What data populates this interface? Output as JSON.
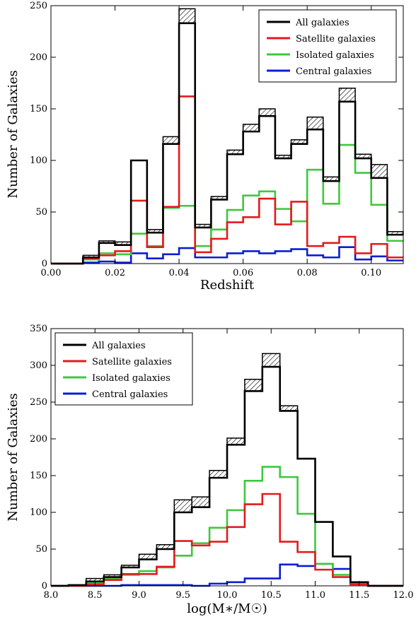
{
  "chart_data": [
    {
      "type": "histogram",
      "xlabel": "Redshift",
      "ylabel": "Number of Galaxies",
      "xlim": [
        0.0,
        0.11
      ],
      "ylim": [
        0,
        250
      ],
      "xticks": [
        "0.00",
        "0.02",
        "0.04",
        "0.06",
        "0.08",
        "0.10"
      ],
      "yticks": [
        "0",
        "50",
        "100",
        "150",
        "200",
        "250"
      ],
      "legend_position": "top-right",
      "bin_edges": [
        0.0,
        0.005,
        0.01,
        0.015,
        0.02,
        0.025,
        0.03,
        0.035,
        0.04,
        0.045,
        0.05,
        0.055,
        0.06,
        0.065,
        0.07,
        0.075,
        0.08,
        0.085,
        0.09,
        0.095,
        0.1,
        0.105,
        0.11
      ],
      "series": [
        {
          "name": "All galaxies",
          "color": "#000000",
          "values": [
            0,
            0,
            6,
            20,
            18,
            100,
            30,
            116,
            233,
            35,
            62,
            106,
            128,
            143,
            102,
            116,
            130,
            80,
            157,
            102,
            83,
            28
          ],
          "upper": [
            0,
            0,
            8,
            22,
            21,
            100,
            33,
            123,
            247,
            38,
            65,
            110,
            135,
            150,
            105,
            120,
            142,
            84,
            170,
            106,
            96,
            31
          ]
        },
        {
          "name": "Satellite galaxies",
          "color": "#e41a1c",
          "values": [
            0,
            0,
            5,
            8,
            12,
            61,
            16,
            55,
            162,
            11,
            24,
            40,
            45,
            63,
            38,
            60,
            17,
            20,
            26,
            10,
            19,
            6
          ]
        },
        {
          "name": "Isolated galaxies",
          "color": "#3ec83e",
          "values": [
            0,
            0,
            4,
            10,
            9,
            29,
            17,
            54,
            56,
            17,
            33,
            52,
            66,
            70,
            53,
            41,
            91,
            58,
            115,
            88,
            57,
            22
          ]
        },
        {
          "name": "Central galaxies",
          "color": "#0a1ed0",
          "values": [
            0,
            0,
            1,
            2,
            1,
            10,
            5,
            9,
            15,
            6,
            6,
            10,
            12,
            10,
            12,
            14,
            8,
            6,
            16,
            4,
            7,
            3
          ]
        }
      ]
    },
    {
      "type": "histogram",
      "xlabel": "log(M∗/M☉)",
      "ylabel": "Number of Galaxies",
      "xlim": [
        8.0,
        12.0
      ],
      "ylim": [
        0,
        350
      ],
      "xticks": [
        "8.0",
        "8.5",
        "9.0",
        "9.5",
        "10.0",
        "10.5",
        "11.0",
        "11.5",
        "12.0"
      ],
      "yticks": [
        "0",
        "50",
        "100",
        "150",
        "200",
        "250",
        "300",
        "350"
      ],
      "legend_position": "top-left",
      "bin_edges": [
        8.0,
        8.2,
        8.4,
        8.6,
        8.8,
        9.0,
        9.2,
        9.4,
        9.6,
        9.8,
        10.0,
        10.2,
        10.4,
        10.6,
        10.8,
        11.0,
        11.2,
        11.4,
        11.6,
        11.8,
        12.0
      ],
      "series": [
        {
          "name": "All galaxies",
          "color": "#000000",
          "values": [
            0,
            1,
            6,
            12,
            25,
            36,
            50,
            100,
            107,
            147,
            192,
            265,
            298,
            238,
            173,
            87,
            40,
            5,
            0,
            0
          ],
          "upper": [
            0,
            1,
            10,
            15,
            28,
            43,
            56,
            117,
            121,
            157,
            201,
            281,
            316,
            245,
            173,
            87,
            40,
            5,
            0,
            0
          ]
        },
        {
          "name": "Satellite galaxies",
          "color": "#e41a1c",
          "values": [
            0,
            0,
            2,
            8,
            16,
            16,
            26,
            61,
            55,
            60,
            80,
            111,
            125,
            60,
            46,
            22,
            12,
            2,
            0,
            0
          ]
        },
        {
          "name": "Isolated galaxies",
          "color": "#3ec83e",
          "values": [
            0,
            0,
            4,
            10,
            15,
            20,
            25,
            41,
            58,
            79,
            103,
            143,
            162,
            148,
            98,
            30,
            15,
            3,
            0,
            0
          ]
        },
        {
          "name": "Central galaxies",
          "color": "#0a1ed0",
          "values": [
            0,
            0,
            0,
            0,
            1,
            1,
            1,
            1,
            0,
            3,
            5,
            10,
            10,
            29,
            27,
            30,
            23,
            5,
            0,
            0
          ]
        }
      ]
    }
  ]
}
